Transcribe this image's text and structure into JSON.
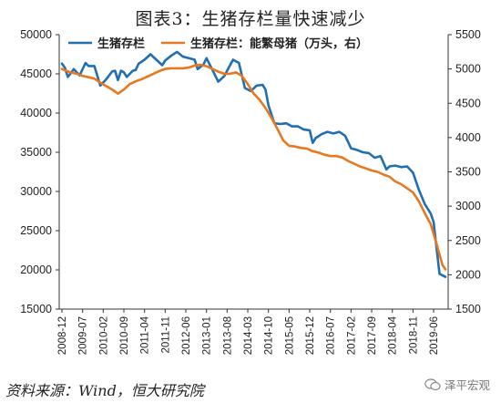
{
  "title": "图表3：生猪存栏量快速减少",
  "source": "资料来源：Wind，恒大研究院",
  "watermark": "泽平宏观",
  "colors": {
    "series1": "#1f6fb2",
    "series2": "#e8781f",
    "axis": "#333333"
  },
  "chart_data": {
    "type": "line",
    "legend_position": "top",
    "grid": false,
    "x_ticks": [
      "2008-12",
      "2009-07",
      "2010-02",
      "2010-09",
      "2011-04",
      "2011-11",
      "2012-06",
      "2013-01",
      "2013-08",
      "2014-03",
      "2014-10",
      "2015-05",
      "2015-12",
      "2016-07",
      "2017-02",
      "2017-09",
      "2018-04",
      "2018-11",
      "2019-06"
    ],
    "y_left": {
      "min": 15000,
      "max": 50000,
      "ticks": [
        15000,
        20000,
        25000,
        30000,
        35000,
        40000,
        45000,
        50000
      ]
    },
    "y_right": {
      "min": 1500,
      "max": 5500,
      "ticks": [
        1500,
        2000,
        2500,
        3000,
        3500,
        4000,
        4500,
        5000,
        5500
      ]
    },
    "series": [
      {
        "name": "生猪存栏",
        "axis": "left",
        "color": "#1f6fb2",
        "x": [
          "2008-12",
          "2009-01",
          "2009-02",
          "2009-04",
          "2009-06",
          "2009-08",
          "2009-09",
          "2009-11",
          "2010-01",
          "2010-03",
          "2010-05",
          "2010-06",
          "2010-07",
          "2010-08",
          "2010-09",
          "2010-10",
          "2010-12",
          "2011-01",
          "2011-02",
          "2011-04",
          "2011-06",
          "2011-08",
          "2011-10",
          "2011-11",
          "2012-01",
          "2012-03",
          "2012-05",
          "2012-07",
          "2012-09",
          "2012-10",
          "2012-12",
          "2013-01",
          "2013-03",
          "2013-05",
          "2013-07",
          "2013-09",
          "2013-10",
          "2013-12",
          "2014-02",
          "2014-04",
          "2014-06",
          "2014-08",
          "2014-09",
          "2014-10",
          "2014-12",
          "2015-02",
          "2015-04",
          "2015-06",
          "2015-08",
          "2015-10",
          "2015-12",
          "2016-01",
          "2016-02",
          "2016-04",
          "2016-06",
          "2016-08",
          "2016-10",
          "2016-12",
          "2017-02",
          "2017-04",
          "2017-06",
          "2017-08",
          "2017-10",
          "2017-12",
          "2018-02",
          "2018-03",
          "2018-05",
          "2018-07",
          "2018-09",
          "2018-11",
          "2019-01",
          "2019-03",
          "2019-05",
          "2019-06",
          "2019-08",
          "2019-10"
        ],
        "values": [
          46300,
          45800,
          44600,
          45600,
          44800,
          46400,
          46000,
          46000,
          43500,
          44300,
          45300,
          45400,
          44200,
          45400,
          45200,
          44600,
          45400,
          45500,
          46300,
          46800,
          47500,
          46800,
          46100,
          46700,
          47300,
          47800,
          47200,
          47000,
          46800,
          45600,
          46200,
          47000,
          45500,
          44000,
          44700,
          46100,
          46800,
          46400,
          43200,
          42800,
          43500,
          43600,
          43000,
          41000,
          38700,
          38600,
          38700,
          38300,
          38300,
          37900,
          37800,
          36200,
          36800,
          37300,
          37600,
          37400,
          37600,
          37100,
          35500,
          35300,
          35000,
          34900,
          34300,
          34500,
          32800,
          33200,
          33300,
          33100,
          33200,
          32400,
          30200,
          28400,
          27200,
          26100,
          19500,
          19100
        ]
      },
      {
        "name": "生猪存栏：能繁母猪（万头，右）",
        "axis": "right",
        "color": "#e8781f",
        "x": [
          "2008-12",
          "2009-01",
          "2009-03",
          "2009-05",
          "2009-07",
          "2009-09",
          "2009-11",
          "2010-01",
          "2010-03",
          "2010-05",
          "2010-07",
          "2010-09",
          "2010-11",
          "2011-01",
          "2011-03",
          "2011-05",
          "2011-07",
          "2011-09",
          "2011-11",
          "2012-01",
          "2012-03",
          "2012-05",
          "2012-07",
          "2012-09",
          "2012-11",
          "2013-01",
          "2013-03",
          "2013-05",
          "2013-07",
          "2013-09",
          "2013-11",
          "2014-01",
          "2014-03",
          "2014-05",
          "2014-07",
          "2014-09",
          "2014-11",
          "2015-01",
          "2015-03",
          "2015-05",
          "2015-07",
          "2015-09",
          "2015-11",
          "2016-01",
          "2016-03",
          "2016-05",
          "2016-07",
          "2016-09",
          "2016-11",
          "2017-01",
          "2017-03",
          "2017-05",
          "2017-07",
          "2017-09",
          "2017-11",
          "2018-01",
          "2018-03",
          "2018-05",
          "2018-07",
          "2018-09",
          "2018-11",
          "2019-01",
          "2019-03",
          "2019-05",
          "2019-07",
          "2019-09",
          "2019-10"
        ],
        "values": [
          5000,
          4980,
          4950,
          4930,
          4900,
          4880,
          4860,
          4800,
          4750,
          4700,
          4640,
          4700,
          4780,
          4820,
          4850,
          4890,
          4930,
          4970,
          5000,
          5010,
          5010,
          5010,
          5020,
          5050,
          5060,
          5040,
          5000,
          4960,
          4930,
          4930,
          4950,
          4900,
          4780,
          4640,
          4550,
          4430,
          4290,
          4130,
          3960,
          3880,
          3870,
          3850,
          3840,
          3800,
          3780,
          3750,
          3730,
          3730,
          3710,
          3660,
          3620,
          3580,
          3550,
          3520,
          3500,
          3460,
          3430,
          3360,
          3320,
          3260,
          3200,
          3070,
          2900,
          2740,
          2450,
          2140,
          2080
        ]
      }
    ]
  }
}
